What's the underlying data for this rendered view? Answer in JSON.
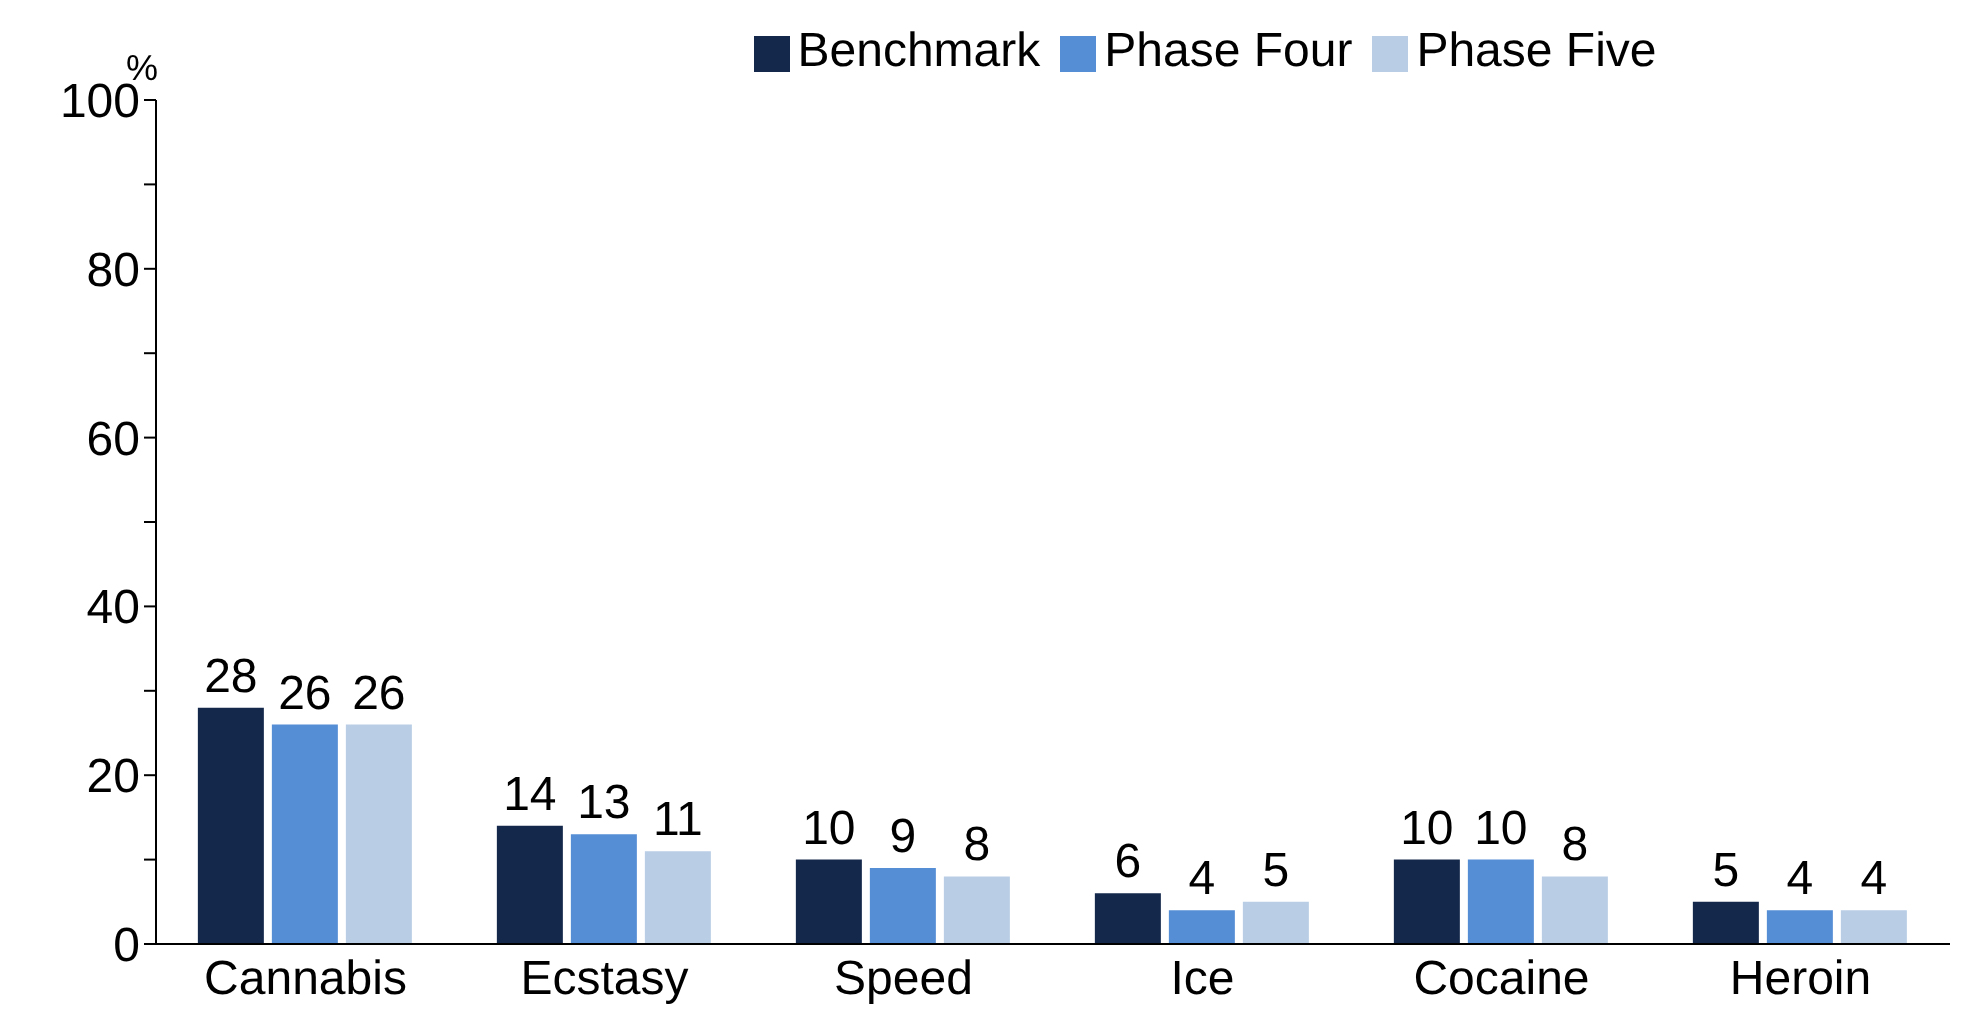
{
  "chart_data": {
    "type": "bar",
    "ylabel": "%",
    "categories": [
      "Cannabis",
      "Ecstasy",
      "Speed",
      "Ice",
      "Cocaine",
      "Heroin"
    ],
    "series": [
      {
        "name": "Benchmark",
        "color": "#14284b",
        "values": [
          28,
          14,
          10,
          6,
          10,
          5
        ]
      },
      {
        "name": "Phase Four",
        "color": "#558ed5",
        "values": [
          26,
          13,
          9,
          4,
          10,
          4
        ]
      },
      {
        "name": "Phase Five",
        "color": "#b9cde5",
        "values": [
          26,
          11,
          8,
          5,
          8,
          4
        ]
      }
    ],
    "ylim": [
      0,
      100
    ],
    "yticks": [
      0,
      {
        "value": 10,
        "label": null
      },
      20,
      {
        "value": 30,
        "label": null
      },
      40,
      {
        "value": 50,
        "label": null
      },
      60,
      {
        "value": 70,
        "label": null
      },
      80,
      {
        "value": 90,
        "label": null
      },
      100
    ],
    "grid": false,
    "legend": "top",
    "data_labels": true
  }
}
